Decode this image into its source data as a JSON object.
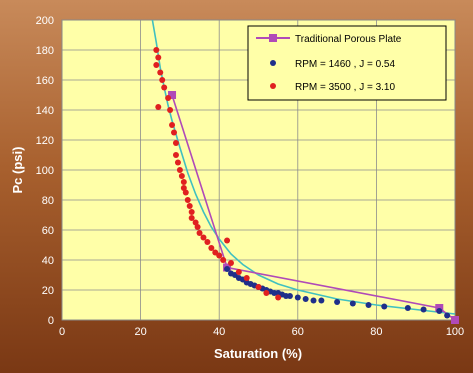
{
  "chart_data": {
    "type": "scatter",
    "title": "",
    "xlabel": "Saturation (%)",
    "ylabel": "Pc (psi)",
    "xlim": [
      0,
      100
    ],
    "ylim": [
      0,
      200
    ],
    "xticks": [
      0,
      20,
      40,
      60,
      80,
      100
    ],
    "yticks": [
      0,
      20,
      40,
      60,
      80,
      100,
      120,
      140,
      160,
      180,
      200
    ],
    "grid": true,
    "legend_position": "top-right",
    "series": [
      {
        "name": "Traditional Porous Plate",
        "kind": "line-marker",
        "color": "#b04ab8",
        "x": [
          28,
          42,
          96,
          100
        ],
        "y": [
          150,
          35,
          8,
          0
        ]
      },
      {
        "name": "RPM = 1460 , J = 0.54",
        "kind": "scatter",
        "color": "#1f2f8a",
        "x": [
          42,
          43,
          44,
          45,
          46,
          47,
          48,
          49,
          50,
          51,
          52,
          53,
          54,
          55,
          56,
          57,
          58,
          60,
          62,
          64,
          66,
          70,
          74,
          78,
          82,
          88,
          92,
          96,
          98
        ],
        "y": [
          34,
          31,
          30,
          28,
          27,
          25,
          24,
          23,
          22,
          21,
          20,
          19,
          18,
          18,
          17,
          16,
          16,
          15,
          14,
          13,
          13,
          12,
          11,
          10,
          9,
          8,
          7,
          6,
          3
        ]
      },
      {
        "name": "RPM = 3500 , J = 3.10",
        "kind": "scatter",
        "color": "#e02020",
        "x": [
          24,
          24.5,
          24,
          25,
          25.5,
          24.5,
          26,
          27,
          27.5,
          28,
          28.5,
          29,
          29,
          29.5,
          30,
          30.5,
          31,
          31,
          31.5,
          32,
          32.5,
          33,
          33,
          34,
          34.5,
          35,
          36,
          37,
          38,
          39,
          40,
          41,
          42,
          43,
          45,
          47,
          50,
          52,
          55
        ],
        "y": [
          180,
          175,
          170,
          165,
          160,
          142,
          155,
          148,
          140,
          130,
          125,
          118,
          110,
          105,
          100,
          96,
          92,
          88,
          85,
          80,
          76,
          72,
          68,
          65,
          62,
          58,
          55,
          52,
          48,
          45,
          43,
          40,
          53,
          38,
          32,
          28,
          22,
          18,
          15
        ]
      }
    ],
    "fit_curve": {
      "color": "#40c0c0",
      "x": [
        23,
        24,
        25,
        26,
        27,
        28,
        30,
        32,
        34,
        36,
        38,
        40,
        43,
        46,
        50,
        55,
        60,
        70,
        80,
        90,
        100
      ],
      "y": [
        200,
        185,
        168,
        155,
        143,
        133,
        115,
        98,
        84,
        72,
        62,
        54,
        44,
        37,
        30,
        24,
        20,
        14,
        10,
        7,
        4
      ]
    }
  }
}
